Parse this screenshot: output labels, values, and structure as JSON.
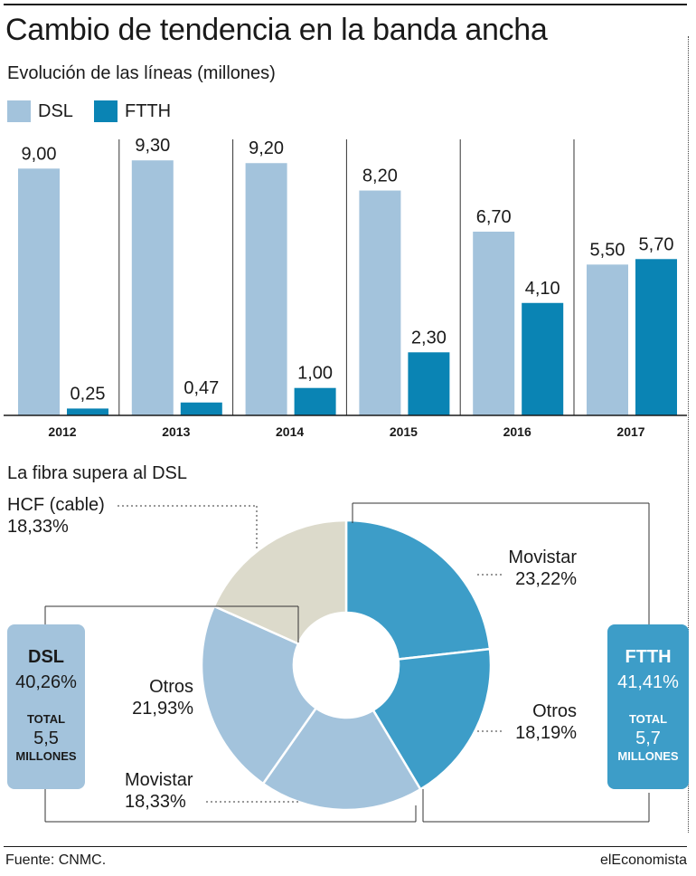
{
  "title": "Cambio de tendencia en la banda ancha",
  "subtitle": "Evolución de las líneas (millones)",
  "colors": {
    "dsl": "#a3c3dc",
    "ftth": "#0a84b4",
    "hcf": "#dcdacb",
    "ftth_donut": "#3d9dc8",
    "text": "#1a1a1a"
  },
  "legend": [
    {
      "label": "DSL"
    },
    {
      "label": "FTTH"
    }
  ],
  "chart_data": [
    {
      "type": "bar",
      "title": "Evolución de las líneas (millones)",
      "categories": [
        "2012",
        "2013",
        "2014",
        "2015",
        "2016",
        "2017"
      ],
      "series": [
        {
          "name": "DSL",
          "values": [
            9.0,
            9.3,
            9.2,
            8.2,
            6.7,
            5.5
          ],
          "labels": [
            "9,00",
            "9,30",
            "9,20",
            "8,20",
            "6,70",
            "5,50"
          ]
        },
        {
          "name": "FTTH",
          "values": [
            0.25,
            0.47,
            1.0,
            2.3,
            4.1,
            5.7
          ],
          "labels": [
            "0,25",
            "0,47",
            "1,00",
            "2,30",
            "4,10",
            "5,70"
          ]
        }
      ],
      "ylim": [
        0,
        10
      ],
      "grid": false
    },
    {
      "type": "pie",
      "title": "La fibra supera al DSL",
      "slices": [
        {
          "name": "Movistar",
          "group": "FTTH",
          "value": 23.22,
          "label": "23,22%"
        },
        {
          "name": "Otros",
          "group": "FTTH",
          "value": 18.19,
          "label": "18,19%"
        },
        {
          "name": "Movistar",
          "group": "DSL",
          "value": 18.33,
          "label": "18,33%"
        },
        {
          "name": "Otros",
          "group": "DSL",
          "value": 21.93,
          "label": "21,93%"
        },
        {
          "name": "HCF (cable)",
          "group": "HCF",
          "value": 18.33,
          "label": "18,33%"
        }
      ],
      "groups": {
        "dsl": {
          "name": "DSL",
          "pct": "40,26%",
          "total_label": "TOTAL",
          "total_value": "5,5",
          "unit": "MILLONES"
        },
        "ftth": {
          "name": "FTTH",
          "pct": "41,41%",
          "total_label": "TOTAL",
          "total_value": "5,7",
          "unit": "MILLONES"
        }
      }
    }
  ],
  "source": "Fuente: CNMC.",
  "brand": "elEconomista"
}
